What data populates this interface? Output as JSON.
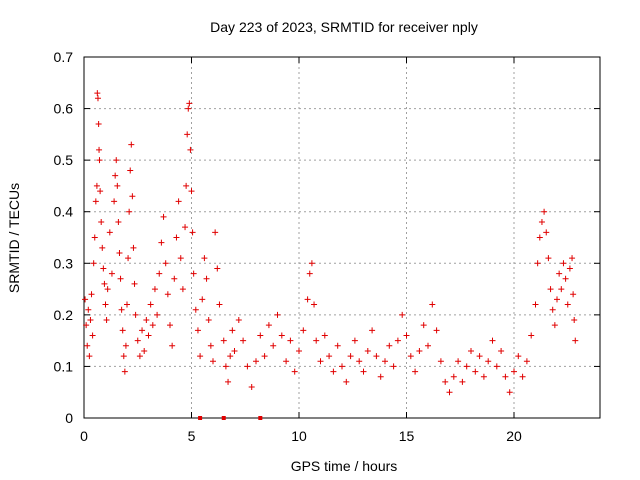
{
  "chart_data": {
    "type": "scatter",
    "title": "Day 223 of 2023, SRMTID for receiver nply",
    "xlabel": "GPS time / hours",
    "ylabel": "SRMTID / TECUs",
    "xlim": [
      0,
      24
    ],
    "ylim": [
      0,
      0.7
    ],
    "xticks": [
      0,
      5,
      10,
      15,
      20
    ],
    "yticks": [
      0,
      0.1,
      0.2,
      0.3,
      0.4,
      0.5,
      0.6,
      0.7
    ],
    "xtick_labels": [
      "0",
      "5",
      "10",
      "15",
      "20"
    ],
    "ytick_labels": [
      "0",
      "0.1",
      "0.2",
      "0.3",
      "0.4",
      "0.5",
      "0.6",
      "0.7"
    ],
    "grid": true,
    "marker": "+",
    "color": "#e00000",
    "series": [
      {
        "name": "SRMTID",
        "points": [
          [
            0.05,
            0.23
          ],
          [
            0.1,
            0.18
          ],
          [
            0.15,
            0.14
          ],
          [
            0.2,
            0.21
          ],
          [
            0.25,
            0.12
          ],
          [
            0.3,
            0.19
          ],
          [
            0.35,
            0.24
          ],
          [
            0.4,
            0.16
          ],
          [
            0.45,
            0.3
          ],
          [
            0.5,
            0.35
          ],
          [
            0.55,
            0.42
          ],
          [
            0.6,
            0.45
          ],
          [
            0.62,
            0.63
          ],
          [
            0.65,
            0.62
          ],
          [
            0.68,
            0.57
          ],
          [
            0.7,
            0.52
          ],
          [
            0.72,
            0.5
          ],
          [
            0.75,
            0.44
          ],
          [
            0.8,
            0.38
          ],
          [
            0.85,
            0.33
          ],
          [
            0.9,
            0.29
          ],
          [
            0.95,
            0.26
          ],
          [
            1.0,
            0.22
          ],
          [
            1.05,
            0.19
          ],
          [
            1.1,
            0.25
          ],
          [
            1.2,
            0.36
          ],
          [
            1.3,
            0.28
          ],
          [
            1.4,
            0.42
          ],
          [
            1.45,
            0.47
          ],
          [
            1.5,
            0.5
          ],
          [
            1.55,
            0.45
          ],
          [
            1.6,
            0.38
          ],
          [
            1.65,
            0.32
          ],
          [
            1.7,
            0.27
          ],
          [
            1.75,
            0.21
          ],
          [
            1.8,
            0.17
          ],
          [
            1.85,
            0.12
          ],
          [
            1.9,
            0.09
          ],
          [
            1.95,
            0.14
          ],
          [
            2.0,
            0.22
          ],
          [
            2.05,
            0.31
          ],
          [
            2.1,
            0.4
          ],
          [
            2.15,
            0.48
          ],
          [
            2.2,
            0.53
          ],
          [
            2.25,
            0.43
          ],
          [
            2.3,
            0.33
          ],
          [
            2.35,
            0.26
          ],
          [
            2.4,
            0.2
          ],
          [
            2.5,
            0.15
          ],
          [
            2.6,
            0.12
          ],
          [
            2.7,
            0.17
          ],
          [
            2.8,
            0.13
          ],
          [
            2.9,
            0.19
          ],
          [
            3.0,
            0.16
          ],
          [
            3.1,
            0.22
          ],
          [
            3.2,
            0.18
          ],
          [
            3.3,
            0.25
          ],
          [
            3.4,
            0.2
          ],
          [
            3.5,
            0.28
          ],
          [
            3.6,
            0.34
          ],
          [
            3.7,
            0.39
          ],
          [
            3.8,
            0.3
          ],
          [
            3.9,
            0.24
          ],
          [
            4.0,
            0.18
          ],
          [
            4.1,
            0.14
          ],
          [
            4.2,
            0.27
          ],
          [
            4.3,
            0.35
          ],
          [
            4.4,
            0.42
          ],
          [
            4.5,
            0.31
          ],
          [
            4.6,
            0.25
          ],
          [
            4.7,
            0.37
          ],
          [
            4.75,
            0.45
          ],
          [
            4.8,
            0.55
          ],
          [
            4.85,
            0.6
          ],
          [
            4.9,
            0.61
          ],
          [
            4.95,
            0.52
          ],
          [
            5.0,
            0.44
          ],
          [
            5.05,
            0.36
          ],
          [
            5.1,
            0.28
          ],
          [
            5.2,
            0.21
          ],
          [
            5.3,
            0.17
          ],
          [
            5.4,
            0.12
          ],
          [
            5.5,
            0.23
          ],
          [
            5.6,
            0.31
          ],
          [
            5.7,
            0.27
          ],
          [
            5.8,
            0.19
          ],
          [
            5.9,
            0.14
          ],
          [
            6.0,
            0.11
          ],
          [
            6.1,
            0.36
          ],
          [
            6.2,
            0.29
          ],
          [
            6.3,
            0.22
          ],
          [
            6.5,
            0.15
          ],
          [
            6.6,
            0.1
          ],
          [
            6.7,
            0.07
          ],
          [
            6.8,
            0.12
          ],
          [
            6.9,
            0.17
          ],
          [
            7.0,
            0.13
          ],
          [
            7.2,
            0.19
          ],
          [
            7.4,
            0.15
          ],
          [
            7.6,
            0.1
          ],
          [
            7.8,
            0.06
          ],
          [
            8.0,
            0.11
          ],
          [
            8.2,
            0.16
          ],
          [
            8.4,
            0.12
          ],
          [
            8.6,
            0.18
          ],
          [
            8.8,
            0.14
          ],
          [
            9.0,
            0.2
          ],
          [
            9.2,
            0.16
          ],
          [
            9.4,
            0.11
          ],
          [
            9.6,
            0.15
          ],
          [
            9.8,
            0.09
          ],
          [
            10.0,
            0.13
          ],
          [
            10.2,
            0.17
          ],
          [
            10.4,
            0.23
          ],
          [
            10.5,
            0.28
          ],
          [
            10.6,
            0.3
          ],
          [
            10.7,
            0.22
          ],
          [
            10.8,
            0.15
          ],
          [
            11.0,
            0.11
          ],
          [
            11.2,
            0.16
          ],
          [
            11.4,
            0.12
          ],
          [
            11.6,
            0.09
          ],
          [
            11.8,
            0.14
          ],
          [
            12.0,
            0.1
          ],
          [
            12.2,
            0.07
          ],
          [
            12.4,
            0.12
          ],
          [
            12.6,
            0.15
          ],
          [
            12.8,
            0.11
          ],
          [
            13.0,
            0.09
          ],
          [
            13.2,
            0.13
          ],
          [
            13.4,
            0.17
          ],
          [
            13.6,
            0.12
          ],
          [
            13.8,
            0.08
          ],
          [
            14.0,
            0.11
          ],
          [
            14.2,
            0.14
          ],
          [
            14.4,
            0.1
          ],
          [
            14.6,
            0.15
          ],
          [
            14.8,
            0.2
          ],
          [
            15.0,
            0.16
          ],
          [
            15.2,
            0.12
          ],
          [
            15.4,
            0.09
          ],
          [
            15.6,
            0.13
          ],
          [
            15.8,
            0.18
          ],
          [
            16.0,
            0.14
          ],
          [
            16.2,
            0.22
          ],
          [
            16.4,
            0.17
          ],
          [
            16.6,
            0.11
          ],
          [
            16.8,
            0.07
          ],
          [
            17.0,
            0.05
          ],
          [
            17.2,
            0.08
          ],
          [
            17.4,
            0.11
          ],
          [
            17.6,
            0.07
          ],
          [
            17.8,
            0.1
          ],
          [
            18.0,
            0.13
          ],
          [
            18.2,
            0.09
          ],
          [
            18.4,
            0.12
          ],
          [
            18.6,
            0.08
          ],
          [
            18.8,
            0.11
          ],
          [
            19.0,
            0.15
          ],
          [
            19.2,
            0.1
          ],
          [
            19.4,
            0.13
          ],
          [
            19.6,
            0.08
          ],
          [
            19.8,
            0.05
          ],
          [
            20.0,
            0.09
          ],
          [
            20.2,
            0.12
          ],
          [
            20.4,
            0.08
          ],
          [
            20.6,
            0.11
          ],
          [
            20.8,
            0.16
          ],
          [
            21.0,
            0.22
          ],
          [
            21.1,
            0.3
          ],
          [
            21.2,
            0.35
          ],
          [
            21.3,
            0.38
          ],
          [
            21.4,
            0.4
          ],
          [
            21.5,
            0.36
          ],
          [
            21.6,
            0.31
          ],
          [
            21.7,
            0.25
          ],
          [
            21.8,
            0.21
          ],
          [
            21.9,
            0.18
          ],
          [
            22.0,
            0.23
          ],
          [
            22.1,
            0.28
          ],
          [
            22.2,
            0.25
          ],
          [
            22.3,
            0.3
          ],
          [
            22.4,
            0.27
          ],
          [
            22.5,
            0.22
          ],
          [
            22.6,
            0.29
          ],
          [
            22.7,
            0.31
          ],
          [
            22.75,
            0.24
          ],
          [
            22.8,
            0.19
          ],
          [
            22.85,
            0.15
          ]
        ]
      }
    ],
    "zero_markers": [
      5.4,
      6.5,
      8.2
    ]
  }
}
